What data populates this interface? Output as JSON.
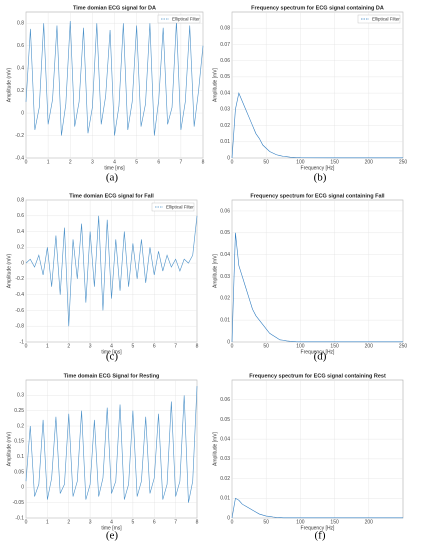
{
  "chart_data": [
    {
      "type": "line",
      "title": "Time domian ECG signal for DA",
      "caption": "(a)",
      "xlabel": "time [ms]",
      "ylabel": "Amplitude (mV)",
      "grid": true,
      "legend": "upper right",
      "x": [
        0,
        0.2,
        0.4,
        0.6,
        0.8,
        1,
        1.2,
        1.4,
        1.6,
        1.8,
        2,
        2.2,
        2.4,
        2.6,
        2.8,
        3,
        3.2,
        3.4,
        3.6,
        3.8,
        4,
        4.2,
        4.4,
        4.6,
        4.8,
        5,
        5.2,
        5.4,
        5.6,
        5.8,
        6,
        6.2,
        6.4,
        6.6,
        6.8,
        7,
        7.2,
        7.4,
        7.6,
        7.8,
        8
      ],
      "series": [
        {
          "name": "Elliptical Filter",
          "color": "#4a90c8",
          "values": [
            0.1,
            0.75,
            -0.15,
            0.05,
            0.8,
            -0.1,
            0.12,
            0.78,
            -0.2,
            0.08,
            0.82,
            -0.12,
            0.1,
            0.76,
            -0.18,
            0.05,
            0.8,
            -0.1,
            0.15,
            0.74,
            -0.2,
            0.06,
            0.8,
            -0.15,
            0.1,
            0.78,
            -0.12,
            0.08,
            0.8,
            -0.2,
            0.12,
            0.76,
            -0.1,
            0.05,
            0.82,
            -0.15,
            0.1,
            0.78,
            -0.12,
            0.2,
            0.6
          ]
        }
      ],
      "xlim": [
        0,
        8
      ],
      "xticks": [
        0,
        1,
        2,
        3,
        4,
        5,
        6,
        7,
        8
      ],
      "ylim": [
        -0.4,
        0.9
      ],
      "yticks": [
        -0.4,
        -0.2,
        0,
        0.2,
        0.4,
        0.6,
        0.8
      ]
    },
    {
      "type": "line",
      "title": "Frequency spectrum for ECG signal containing DA",
      "caption": "(b)",
      "xlabel": "Frequency [Hz]",
      "ylabel": "Amplitude [mV]",
      "grid": true,
      "legend": "upper right",
      "x": [
        0,
        5,
        10,
        15,
        20,
        25,
        30,
        35,
        40,
        45,
        50,
        55,
        60,
        65,
        70,
        75,
        80,
        85,
        90,
        95,
        100,
        150,
        200,
        250
      ],
      "series": [
        {
          "name": "Elliptical Filter",
          "color": "#2f7cc0",
          "values": [
            0,
            0.03,
            0.04,
            0.035,
            0.03,
            0.025,
            0.02,
            0.015,
            0.012,
            0.008,
            0.006,
            0.004,
            0.003,
            0.002,
            0.0015,
            0.001,
            0.0008,
            0.0005,
            0.0004,
            0.0003,
            0.0002,
            0.0001,
            0.0001,
            0.0001
          ]
        }
      ],
      "xlim": [
        0,
        250
      ],
      "xticks": [
        0,
        50,
        100,
        150,
        200,
        250
      ],
      "ylim": [
        0,
        0.09
      ],
      "yticks": [
        0,
        0.01,
        0.02,
        0.03,
        0.04,
        0.05,
        0.06,
        0.07,
        0.08
      ]
    },
    {
      "type": "line",
      "title": "Time domian ECG signal for Fall",
      "caption": "(c)",
      "xlabel": "time [ms]",
      "ylabel": "Amplitude (mV)",
      "grid": true,
      "legend": "upper right",
      "x": [
        0,
        0.2,
        0.4,
        0.6,
        0.8,
        1,
        1.2,
        1.4,
        1.6,
        1.8,
        2,
        2.2,
        2.4,
        2.6,
        2.8,
        3,
        3.2,
        3.4,
        3.6,
        3.8,
        4,
        4.2,
        4.4,
        4.6,
        4.8,
        5,
        5.2,
        5.4,
        5.6,
        5.8,
        6,
        6.2,
        6.4,
        6.6,
        6.8,
        7,
        7.2,
        7.4,
        7.6,
        7.8,
        8
      ],
      "series": [
        {
          "name": "Elliptical Filter",
          "color": "#4a90c8",
          "values": [
            0,
            0.05,
            -0.05,
            0.1,
            -0.15,
            0.2,
            -0.3,
            0.35,
            -0.4,
            0.45,
            -0.8,
            0.3,
            -0.2,
            0.5,
            -0.5,
            0.4,
            -0.3,
            0.6,
            -0.6,
            0.55,
            -0.45,
            0.3,
            -0.35,
            0.4,
            -0.3,
            0.25,
            -0.2,
            0.3,
            -0.25,
            0.2,
            -0.15,
            0.15,
            -0.1,
            0.1,
            -0.05,
            0.05,
            -0.1,
            0.05,
            0,
            0.1,
            0.6
          ]
        }
      ],
      "xlim": [
        0,
        8
      ],
      "xticks": [
        0,
        1,
        2,
        3,
        4,
        5,
        6,
        7,
        8
      ],
      "ylim": [
        -1,
        0.8
      ],
      "yticks": [
        -1,
        -0.8,
        -0.6,
        -0.4,
        -0.2,
        0,
        0.2,
        0.4,
        0.6,
        0.8
      ]
    },
    {
      "type": "line",
      "title": "Frequency spectrum for ECG signal containing Fall",
      "caption": "(d)",
      "xlabel": "Frequency [Hz]",
      "ylabel": "Amplitude [mV]",
      "grid": true,
      "x": [
        0,
        5,
        10,
        15,
        20,
        25,
        30,
        35,
        40,
        45,
        50,
        55,
        60,
        65,
        70,
        75,
        80,
        85,
        90,
        95,
        100,
        150,
        200,
        250
      ],
      "series": [
        {
          "color": "#2f7cc0",
          "values": [
            0,
            0.05,
            0.035,
            0.03,
            0.025,
            0.02,
            0.015,
            0.012,
            0.01,
            0.008,
            0.006,
            0.004,
            0.003,
            0.002,
            0.001,
            0.0008,
            0.0005,
            0.0003,
            0.0002,
            0.0001,
            0.0001,
            0.0001,
            0.0001,
            0.0001
          ]
        }
      ],
      "xlim": [
        0,
        250
      ],
      "xticks": [
        0,
        50,
        100,
        150,
        200,
        250
      ],
      "ylim": [
        0,
        0.065
      ],
      "yticks": [
        0,
        0.01,
        0.02,
        0.03,
        0.04,
        0.05,
        0.06
      ]
    },
    {
      "type": "line",
      "title": "Time domain ECG Signal for Resting",
      "caption": "(e)",
      "xlabel": "time [ms]",
      "ylabel": "Amplitude (mV)",
      "grid": true,
      "x": [
        0,
        0.2,
        0.4,
        0.6,
        0.8,
        1,
        1.2,
        1.4,
        1.6,
        1.8,
        2,
        2.2,
        2.4,
        2.6,
        2.8,
        3,
        3.2,
        3.4,
        3.6,
        3.8,
        4,
        4.2,
        4.4,
        4.6,
        4.8,
        5,
        5.2,
        5.4,
        5.6,
        5.8,
        6,
        6.2,
        6.4,
        6.6,
        6.8,
        7,
        7.2,
        7.4,
        7.6,
        7.8,
        8
      ],
      "series": [
        {
          "color": "#4a90c8",
          "values": [
            0.02,
            0.2,
            -0.03,
            0.01,
            0.22,
            -0.04,
            0.03,
            0.23,
            -0.02,
            0.01,
            0.24,
            -0.03,
            0.02,
            0.25,
            -0.04,
            0.01,
            0.22,
            -0.03,
            0.03,
            0.26,
            -0.02,
            0.02,
            0.27,
            -0.04,
            0.01,
            0.25,
            -0.03,
            0.02,
            0.23,
            -0.02,
            0.03,
            0.24,
            -0.04,
            0.01,
            0.28,
            -0.03,
            0.02,
            0.3,
            -0.05,
            0.02,
            0.33
          ]
        }
      ],
      "xlim": [
        0,
        8
      ],
      "xticks": [
        0,
        1,
        2,
        3,
        4,
        5,
        6,
        7,
        8
      ],
      "ylim": [
        -0.1,
        0.35
      ],
      "yticks": [
        -0.1,
        -0.05,
        0,
        0.05,
        0.1,
        0.15,
        0.2,
        0.25,
        0.3
      ]
    },
    {
      "type": "line",
      "title": "Frequency spectrum for ECG signal containing Rest",
      "caption": "(f)",
      "xlabel": "Frequency [Hz]",
      "ylabel": "Amplitude [mV]",
      "grid": true,
      "x": [
        0,
        5,
        10,
        15,
        20,
        25,
        30,
        35,
        40,
        45,
        50,
        55,
        60,
        65,
        70,
        75,
        80,
        85,
        90,
        95,
        100,
        150,
        200,
        250
      ],
      "series": [
        {
          "color": "#2f7cc0",
          "values": [
            0,
            0.01,
            0.009,
            0.007,
            0.006,
            0.005,
            0.004,
            0.003,
            0.002,
            0.0015,
            0.001,
            0.0008,
            0.0005,
            0.0003,
            0.0002,
            0.0001,
            0.0001,
            0.0001,
            0.0001,
            0.0001,
            0.0001,
            0.0001,
            0.0001,
            0.0001
          ]
        }
      ],
      "xlim": [
        0,
        250
      ],
      "xticks": [
        0,
        50,
        100,
        150,
        200
      ],
      "ylim": [
        0,
        0.07
      ],
      "yticks": [
        0,
        0.01,
        0.02,
        0.03,
        0.04,
        0.05,
        0.06
      ]
    }
  ]
}
